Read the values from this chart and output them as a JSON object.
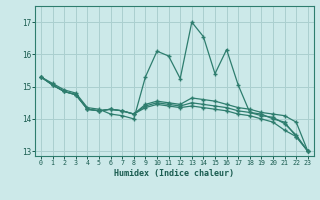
{
  "xlabel": "Humidex (Indice chaleur)",
  "bg_color": "#cce9e9",
  "grid_color": "#aacfcf",
  "line_color": "#2e7d6e",
  "xlim": [
    -0.5,
    23.5
  ],
  "ylim": [
    12.85,
    17.5
  ],
  "yticks": [
    13,
    14,
    15,
    16,
    17
  ],
  "xticks": [
    0,
    1,
    2,
    3,
    4,
    5,
    6,
    7,
    8,
    9,
    10,
    11,
    12,
    13,
    14,
    15,
    16,
    17,
    18,
    19,
    20,
    21,
    22,
    23
  ],
  "lines": [
    [
      15.3,
      15.1,
      14.9,
      14.8,
      14.35,
      14.3,
      14.15,
      14.1,
      14.0,
      15.3,
      16.1,
      15.95,
      15.25,
      17.0,
      16.55,
      15.4,
      16.15,
      15.05,
      14.2,
      14.15,
      14.0,
      13.9,
      13.45,
      13.0
    ],
    [
      15.3,
      15.05,
      14.85,
      14.75,
      14.3,
      14.25,
      14.3,
      14.25,
      14.15,
      14.45,
      14.55,
      14.5,
      14.45,
      14.65,
      14.6,
      14.55,
      14.45,
      14.35,
      14.3,
      14.2,
      14.15,
      14.1,
      13.9,
      13.0
    ],
    [
      15.3,
      15.05,
      14.85,
      14.75,
      14.3,
      14.25,
      14.3,
      14.25,
      14.15,
      14.4,
      14.5,
      14.45,
      14.4,
      14.5,
      14.45,
      14.4,
      14.35,
      14.25,
      14.2,
      14.1,
      14.05,
      13.85,
      13.5,
      13.0
    ],
    [
      15.3,
      15.05,
      14.85,
      14.75,
      14.3,
      14.25,
      14.3,
      14.25,
      14.15,
      14.35,
      14.45,
      14.4,
      14.35,
      14.4,
      14.35,
      14.3,
      14.25,
      14.15,
      14.1,
      14.0,
      13.9,
      13.65,
      13.45,
      13.0
    ]
  ]
}
